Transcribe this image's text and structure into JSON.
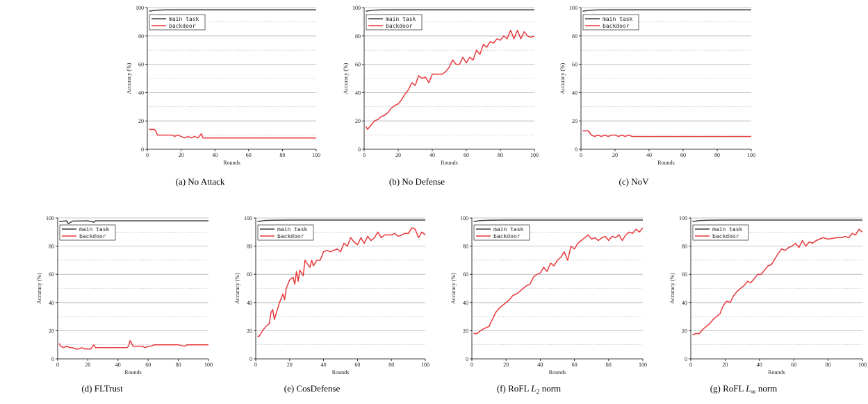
{
  "colors": {
    "main_task": "#3a3a3a",
    "backdoor": "#e8383b",
    "grid": "#b0b0b0",
    "axis": "#000000"
  },
  "chart_data": [
    {
      "type": "line",
      "caption": "(a)  No Attack",
      "xlabel": "Rounds",
      "ylabel": "Accuracy (%)",
      "xlim": [
        0,
        100
      ],
      "ylim": [
        0,
        100
      ],
      "xticks": [
        0,
        20,
        40,
        60,
        80,
        100
      ],
      "yticks": [
        0,
        20,
        40,
        60,
        80,
        100
      ],
      "grid": true,
      "legend_position": "top-left",
      "series": [
        {
          "name": "main task",
          "x": [
            1,
            5,
            10,
            20,
            40,
            60,
            80,
            100
          ],
          "values": [
            97.5,
            98.2,
            98.4,
            98.5,
            98.5,
            98.5,
            98.5,
            98.5
          ]
        },
        {
          "name": "backdoor",
          "x": [
            1,
            4,
            5,
            6,
            10,
            15,
            16,
            18,
            20,
            22,
            24,
            26,
            28,
            30,
            32,
            33,
            35,
            40,
            60,
            80,
            100
          ],
          "values": [
            14,
            14,
            13,
            10,
            10,
            10,
            9,
            10,
            9,
            8,
            9,
            8,
            9,
            8,
            11,
            8,
            8,
            8,
            8,
            8,
            8
          ]
        }
      ]
    },
    {
      "type": "line",
      "caption": "(b)  No Defense",
      "xlabel": "Rounds",
      "ylabel": "Accuracy (%)",
      "xlim": [
        0,
        100
      ],
      "ylim": [
        0,
        100
      ],
      "xticks": [
        0,
        20,
        40,
        60,
        80,
        100
      ],
      "yticks": [
        0,
        20,
        40,
        60,
        80,
        100
      ],
      "grid": true,
      "legend_position": "top-left",
      "series": [
        {
          "name": "main task",
          "x": [
            1,
            5,
            10,
            20,
            40,
            60,
            80,
            100
          ],
          "values": [
            97.5,
            98.2,
            98.4,
            98.5,
            98.5,
            98.5,
            98.5,
            98.5
          ]
        },
        {
          "name": "backdoor",
          "x": [
            1,
            2,
            4,
            6,
            8,
            10,
            12,
            14,
            16,
            18,
            20,
            22,
            24,
            26,
            28,
            30,
            32,
            34,
            36,
            38,
            40,
            42,
            44,
            46,
            48,
            50,
            52,
            54,
            56,
            58,
            60,
            62,
            64,
            66,
            68,
            70,
            72,
            74,
            76,
            78,
            80,
            82,
            84,
            86,
            88,
            90,
            92,
            94,
            96,
            98,
            100
          ],
          "values": [
            16,
            14,
            17,
            20,
            21,
            23,
            24,
            26,
            29,
            31,
            32,
            35,
            39,
            42,
            47,
            45,
            52,
            50,
            51,
            47,
            53,
            53,
            53,
            53,
            55,
            58,
            63,
            60,
            60,
            65,
            61,
            65,
            63,
            70,
            67,
            74,
            72,
            76,
            75,
            78,
            77,
            80,
            78,
            84,
            78,
            84,
            78,
            83,
            80,
            79,
            80
          ]
        }
      ]
    },
    {
      "type": "line",
      "caption": "(c)  NoV",
      "xlabel": "Rounds",
      "ylabel": "Accuracy (%)",
      "xlim": [
        0,
        100
      ],
      "ylim": [
        0,
        100
      ],
      "xticks": [
        0,
        20,
        40,
        60,
        80,
        100
      ],
      "yticks": [
        0,
        20,
        40,
        60,
        80,
        100
      ],
      "grid": true,
      "legend_position": "top-left",
      "series": [
        {
          "name": "main task",
          "x": [
            1,
            5,
            10,
            20,
            40,
            60,
            80,
            100
          ],
          "values": [
            97.5,
            98.2,
            98.4,
            98.5,
            98.5,
            98.5,
            98.5,
            98.5
          ]
        },
        {
          "name": "backdoor",
          "x": [
            1,
            4,
            5,
            6,
            8,
            10,
            12,
            14,
            16,
            18,
            20,
            22,
            24,
            26,
            28,
            30,
            40,
            60,
            80,
            100
          ],
          "values": [
            13,
            13,
            12,
            10,
            9,
            10,
            9,
            10,
            9,
            10,
            10,
            9,
            10,
            9,
            10,
            9,
            9,
            9,
            9,
            9
          ]
        }
      ]
    },
    {
      "type": "line",
      "caption": "(d)  FLTrust",
      "xlabel": "Rounds",
      "ylabel": "Accuracy (%)",
      "xlim": [
        0,
        100
      ],
      "ylim": [
        0,
        100
      ],
      "xticks": [
        0,
        20,
        40,
        60,
        80,
        100
      ],
      "yticks": [
        0,
        20,
        40,
        60,
        80,
        100
      ],
      "grid": true,
      "legend_position": "top-left",
      "series": [
        {
          "name": "main task",
          "x": [
            1,
            4,
            6,
            7,
            10,
            20,
            24,
            25,
            40,
            60,
            80,
            100
          ],
          "values": [
            97.5,
            97.8,
            98,
            96,
            97.8,
            98,
            97,
            98,
            98,
            98,
            98,
            98
          ]
        },
        {
          "name": "backdoor",
          "x": [
            1,
            2,
            4,
            6,
            8,
            10,
            12,
            14,
            16,
            18,
            20,
            22,
            24,
            25,
            26,
            30,
            40,
            46,
            47,
            48,
            50,
            56,
            58,
            60,
            62,
            64,
            70,
            80,
            84,
            86,
            90,
            100
          ],
          "values": [
            11,
            9,
            8,
            9,
            8,
            8,
            7,
            7,
            8,
            7,
            7,
            7,
            10,
            8,
            8,
            8,
            8,
            8,
            9,
            13,
            9,
            9,
            8,
            9,
            9,
            10,
            10,
            10,
            9,
            10,
            10,
            10
          ]
        }
      ]
    },
    {
      "type": "line",
      "caption": "(e)  CosDefense",
      "xlabel": "Rounds",
      "ylabel": "Accuracy (%)",
      "xlim": [
        0,
        100
      ],
      "ylim": [
        0,
        100
      ],
      "xticks": [
        0,
        20,
        40,
        60,
        80,
        100
      ],
      "yticks": [
        0,
        20,
        40,
        60,
        80,
        100
      ],
      "grid": true,
      "legend_position": "top-left",
      "series": [
        {
          "name": "main task",
          "x": [
            1,
            5,
            10,
            20,
            40,
            60,
            80,
            100
          ],
          "values": [
            97.5,
            98.2,
            98.4,
            98.5,
            98.5,
            98.5,
            98.5,
            98.5
          ]
        },
        {
          "name": "backdoor",
          "x": [
            1,
            2,
            4,
            6,
            8,
            9,
            10,
            11,
            12,
            14,
            16,
            17,
            18,
            20,
            22,
            23,
            24,
            25,
            26,
            28,
            29,
            30,
            32,
            33,
            34,
            36,
            38,
            40,
            42,
            44,
            46,
            48,
            50,
            52,
            54,
            56,
            58,
            60,
            62,
            64,
            66,
            68,
            70,
            72,
            74,
            76,
            78,
            80,
            82,
            84,
            86,
            88,
            90,
            92,
            94,
            96,
            98,
            100
          ],
          "values": [
            16,
            16,
            20,
            23,
            25,
            33,
            35,
            28,
            32,
            40,
            46,
            42,
            50,
            56,
            58,
            53,
            62,
            55,
            63,
            59,
            70,
            68,
            65,
            70,
            66,
            70,
            70,
            76,
            77,
            76,
            77,
            78,
            76,
            82,
            80,
            86,
            83,
            81,
            86,
            82,
            87,
            84,
            86,
            90,
            86,
            88,
            88,
            88,
            89,
            87,
            88,
            89,
            89,
            93,
            92,
            86,
            90,
            88
          ]
        }
      ]
    },
    {
      "type": "line",
      "caption": "(f)  RoFL L2 norm",
      "caption_parts": {
        "prefix": "(f)  RoFL ",
        "var": "L",
        "sub": "2",
        "suffix": " norm"
      },
      "xlabel": "Rounds",
      "ylabel": "Accuracy (%)",
      "xlim": [
        0,
        100
      ],
      "ylim": [
        0,
        100
      ],
      "xticks": [
        0,
        20,
        40,
        60,
        80,
        100
      ],
      "yticks": [
        0,
        20,
        40,
        60,
        80,
        100
      ],
      "grid": true,
      "legend_position": "top-left",
      "series": [
        {
          "name": "main task",
          "x": [
            1,
            5,
            10,
            20,
            40,
            60,
            80,
            100
          ],
          "values": [
            97.5,
            98.2,
            98.4,
            98.5,
            98.5,
            98.5,
            98.5,
            98.5
          ]
        },
        {
          "name": "backdoor",
          "x": [
            1,
            3,
            5,
            8,
            10,
            12,
            14,
            16,
            18,
            20,
            22,
            24,
            26,
            28,
            30,
            32,
            34,
            36,
            38,
            40,
            42,
            44,
            46,
            48,
            50,
            52,
            54,
            56,
            58,
            60,
            62,
            64,
            66,
            68,
            70,
            72,
            74,
            76,
            78,
            80,
            82,
            84,
            86,
            88,
            90,
            92,
            94,
            96,
            98,
            100
          ],
          "values": [
            18,
            18,
            20,
            22,
            23,
            28,
            33,
            36,
            38,
            40,
            42,
            45,
            46,
            48,
            50,
            52,
            53,
            58,
            60,
            61,
            65,
            62,
            68,
            66,
            70,
            72,
            76,
            70,
            80,
            78,
            82,
            84,
            86,
            88,
            85,
            86,
            84,
            86,
            87,
            84,
            87,
            86,
            88,
            84,
            88,
            90,
            89,
            92,
            90,
            93
          ]
        }
      ]
    },
    {
      "type": "line",
      "caption": "(g)  RoFL L∞ norm",
      "caption_parts": {
        "prefix": "(g)  RoFL ",
        "var": "L",
        "sub": "∞",
        "suffix": " norm"
      },
      "xlabel": "Rounds",
      "ylabel": "Accuracy (%)",
      "xlim": [
        0,
        100
      ],
      "ylim": [
        0,
        100
      ],
      "xticks": [
        0,
        20,
        40,
        60,
        80,
        100
      ],
      "yticks": [
        0,
        20,
        40,
        60,
        80,
        100
      ],
      "grid": true,
      "legend_position": "top-left",
      "series": [
        {
          "name": "main task",
          "x": [
            1,
            5,
            10,
            20,
            40,
            60,
            80,
            100
          ],
          "values": [
            97.5,
            98.2,
            98.4,
            98.5,
            98.5,
            98.5,
            98.5,
            98.5
          ]
        },
        {
          "name": "backdoor",
          "x": [
            1,
            3,
            5,
            7,
            9,
            11,
            13,
            15,
            17,
            19,
            21,
            23,
            25,
            27,
            29,
            31,
            33,
            35,
            37,
            39,
            41,
            43,
            45,
            47,
            49,
            51,
            53,
            55,
            57,
            59,
            61,
            63,
            65,
            67,
            69,
            71,
            73,
            75,
            77,
            80,
            85,
            88,
            90,
            92,
            94,
            96,
            98,
            100
          ],
          "values": [
            17,
            18,
            18,
            21,
            23,
            25,
            28,
            30,
            32,
            38,
            41,
            40,
            45,
            48,
            50,
            52,
            55,
            54,
            57,
            60,
            60,
            63,
            66,
            67,
            71,
            75,
            78,
            77,
            79,
            80,
            82,
            79,
            84,
            80,
            83,
            82,
            84,
            85,
            86,
            85,
            86,
            86,
            87,
            86,
            89,
            88,
            92,
            90
          ]
        }
      ]
    }
  ]
}
